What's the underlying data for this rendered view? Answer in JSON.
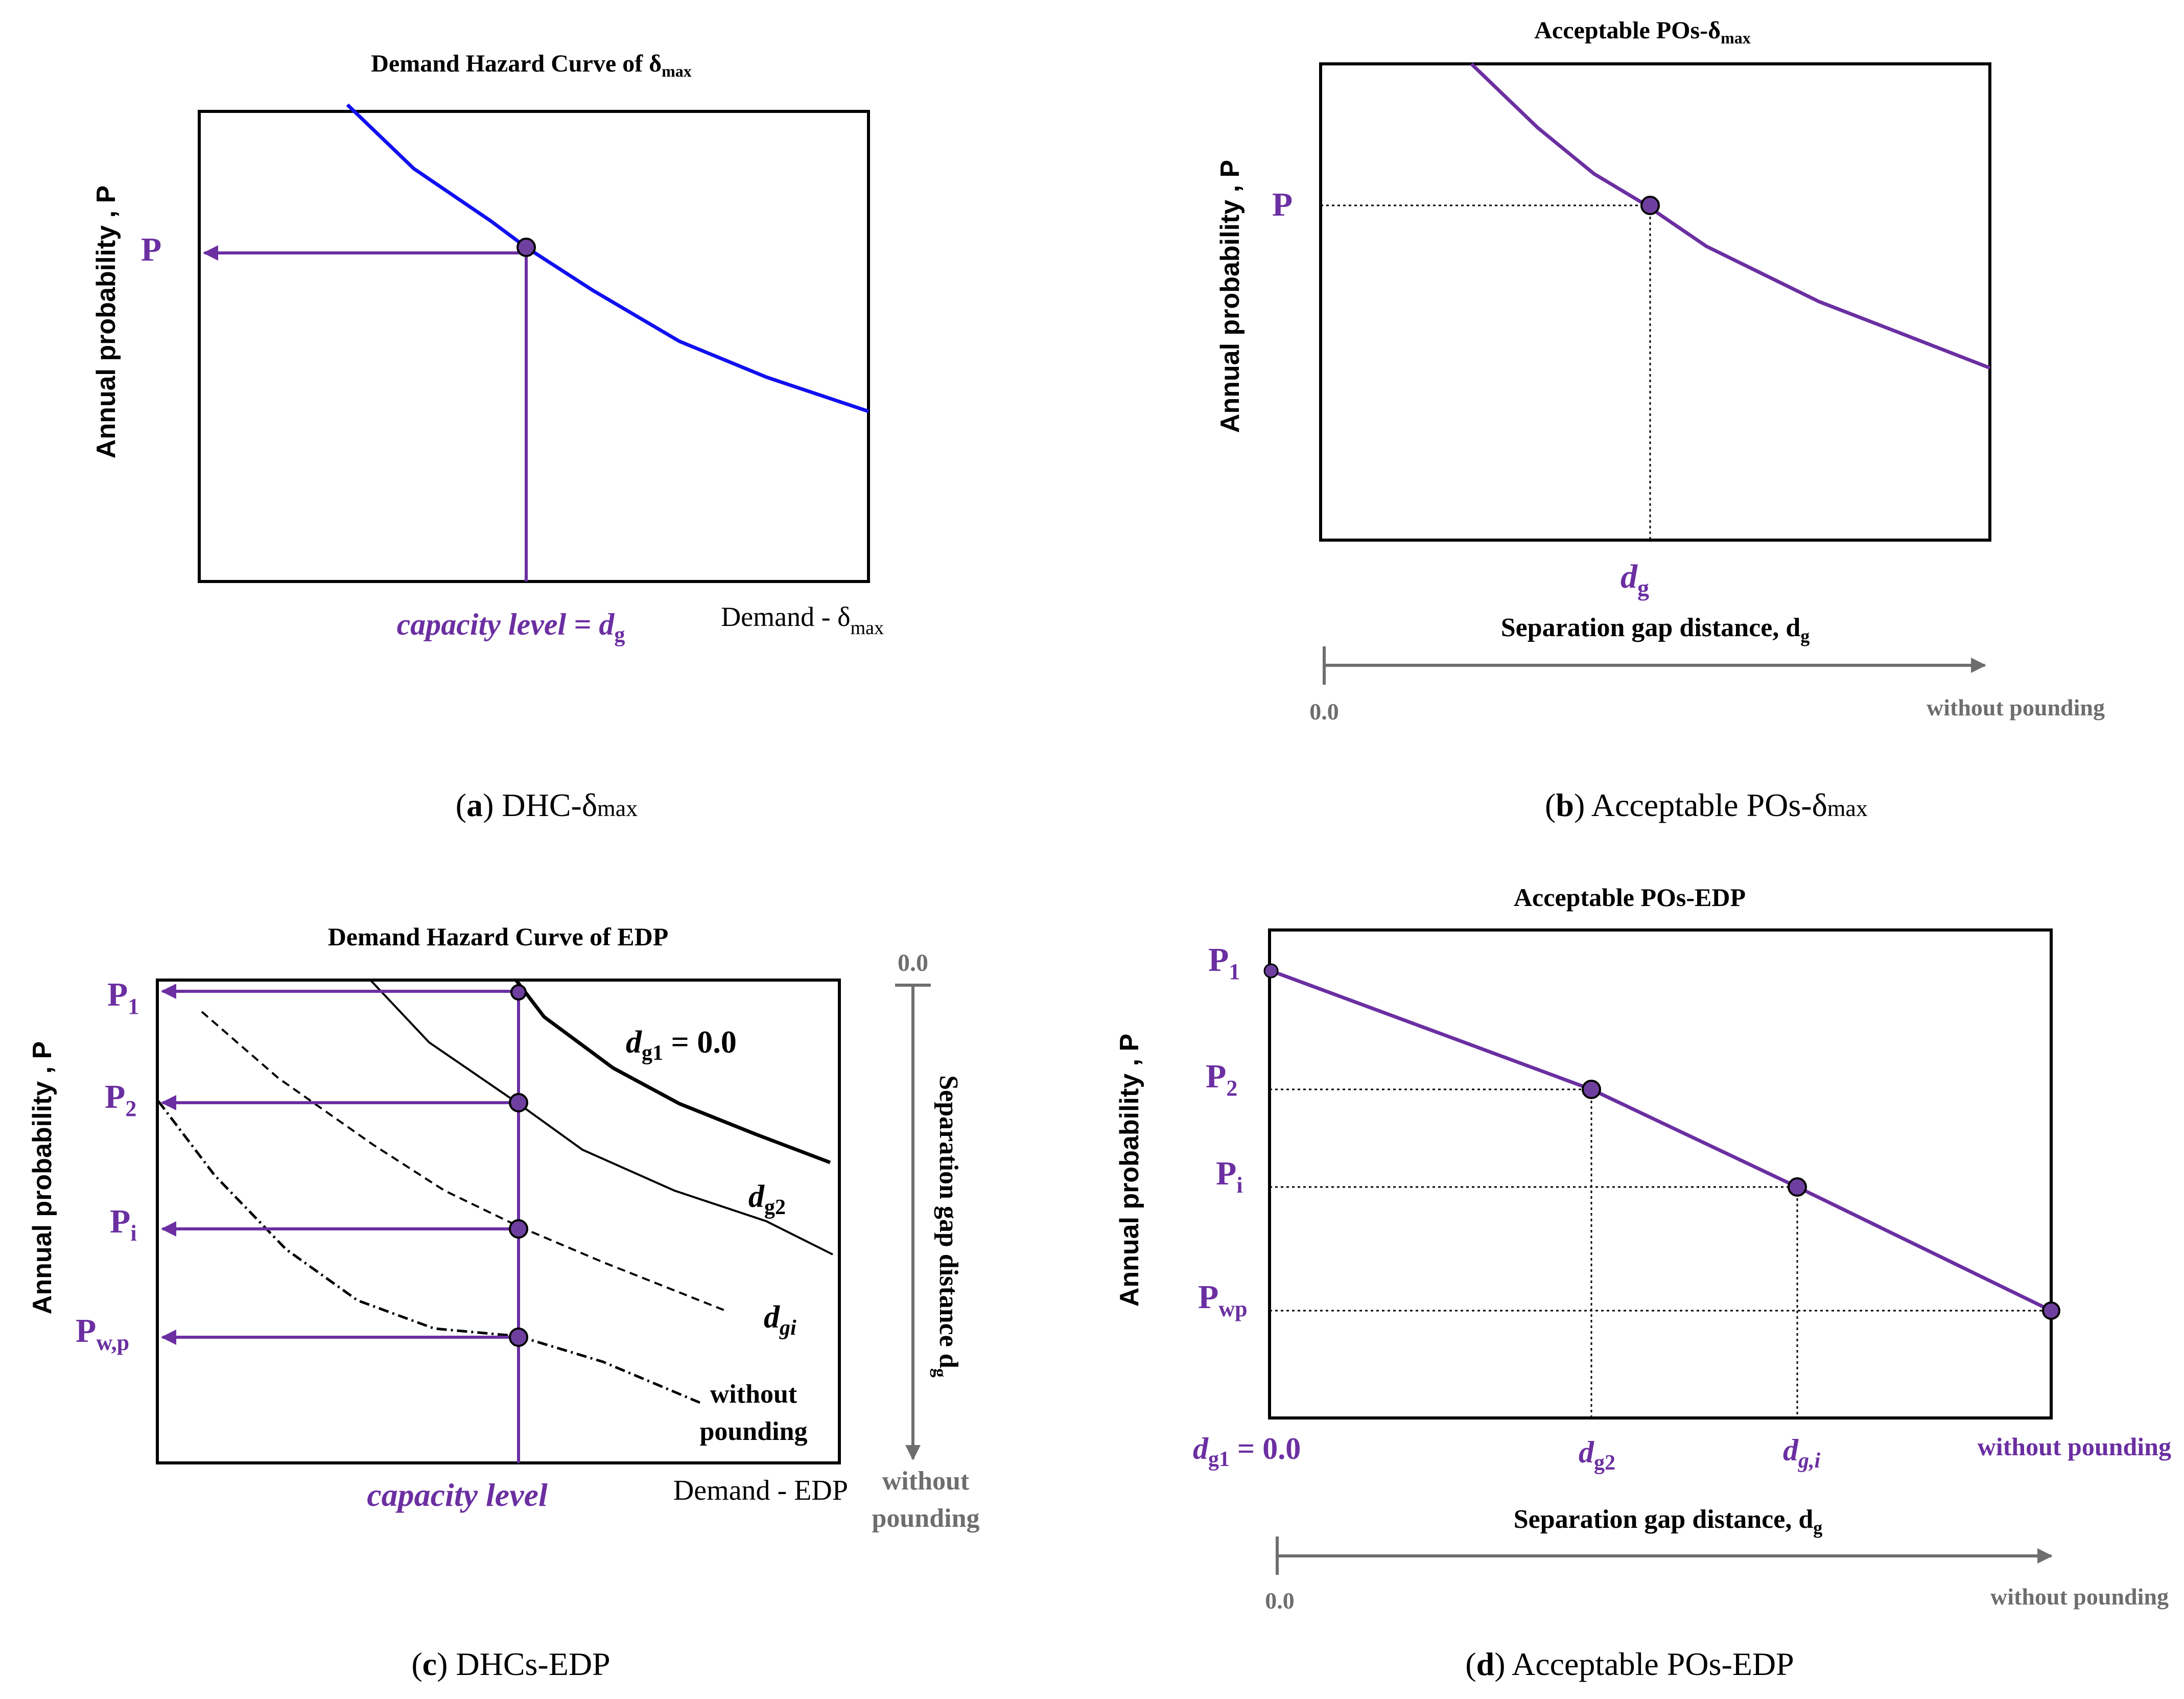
{
  "colors": {
    "purple": "#6b2fa1",
    "dot": "#6f3fa0",
    "blue": "#1010f0",
    "gray": "#6e6e6e",
    "black": "#000000"
  },
  "panel_a": {
    "title": "Demand Hazard Curve of ",
    "title_symbol": "δ",
    "title_sub": "max",
    "ylabel": "Annual probability , P",
    "p_label": "P",
    "capacity_label": "capacity level = ",
    "capacity_var": "d",
    "capacity_sub": "g",
    "xlabel": "Demand - ",
    "xlabel_symbol": "δ",
    "xlabel_sub": "max",
    "caption_letter": "a",
    "caption_text": " DHC-",
    "caption_symbol": "δ",
    "caption_sub": "max"
  },
  "panel_b": {
    "title": "Acceptable POs-",
    "title_symbol": "δ",
    "title_sub": "max",
    "ylabel": "Annual probability , P",
    "p_label": "P",
    "dg_label": "d",
    "dg_sub": "g",
    "xlabel": "Separation gap distance, ",
    "xlabel_var": "d",
    "xlabel_sub": "g",
    "axis_start": "0.0",
    "axis_end": "without pounding",
    "caption_letter": "b",
    "caption_text": " Acceptable POs-",
    "caption_symbol": "δ",
    "caption_sub": "max"
  },
  "panel_c": {
    "title": "Demand Hazard Curve of EDP",
    "ylabel": "Annual probability , P",
    "p_labels": [
      {
        "main": "P",
        "sub": "1"
      },
      {
        "main": "P",
        "sub": "2"
      },
      {
        "main": "P",
        "sub": "i"
      },
      {
        "main": "P",
        "sub": "w,p"
      }
    ],
    "curve_labels": [
      {
        "main": "d",
        "sub": "g1",
        "rest": " = 0.0"
      },
      {
        "main": "d",
        "sub": "g2",
        "rest": ""
      },
      {
        "main": "d",
        "sub": "gi",
        "rest": ""
      }
    ],
    "without_line1": "without",
    "without_line2": "pounding",
    "capacity_label": "capacity level",
    "xlabel": "Demand - EDP",
    "side_axis_start": "0.0",
    "side_axis_label": "Separation gap distance d",
    "side_axis_sub": "g",
    "side_axis_end_line1": "without",
    "side_axis_end_line2": "pounding",
    "caption_letter": "c",
    "caption_text": " DHCs-EDP"
  },
  "panel_d": {
    "title": "Acceptable POs-EDP",
    "ylabel": "Annual probability , P",
    "p_labels": [
      {
        "main": "P",
        "sub": "1"
      },
      {
        "main": "P",
        "sub": "2"
      },
      {
        "main": "P",
        "sub": "i"
      },
      {
        "main": "P",
        "sub": "wp"
      }
    ],
    "x_labels": [
      {
        "main": "d",
        "sub": "g1",
        "rest": " = 0.0"
      },
      {
        "main": "d",
        "sub": "g2",
        "rest": ""
      },
      {
        "main": "d",
        "sub": "g,i",
        "rest": ""
      }
    ],
    "x_end_label": "without pounding",
    "xlabel": "Separation gap distance, ",
    "xlabel_var": "d",
    "xlabel_sub": "g",
    "axis_start": "0.0",
    "axis_end": "without pounding",
    "caption_letter": "d",
    "caption_text": " Acceptable POs-EDP"
  }
}
